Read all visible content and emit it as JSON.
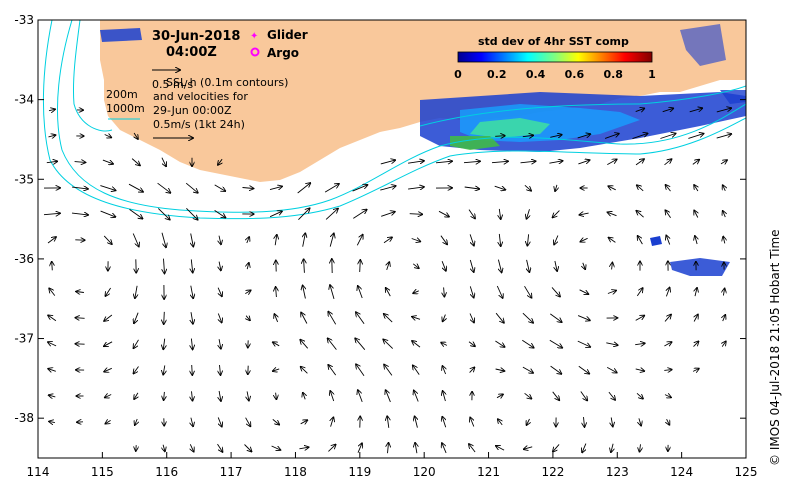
{
  "map": {
    "date": "30-Jun-2018",
    "time": "04:00Z",
    "legend_glider": "Glider",
    "legend_argo": "Argo",
    "sla_line1": "SSL h (0.1m contours)",
    "sla_line2": "and velocities for",
    "sla_line3": "29-Jun 00:00Z",
    "sla_line4": "0.5m/s (1kt 24h)",
    "scale_label": "0.5 m/s",
    "depth_200": "200m",
    "depth_1000": "1000m",
    "colorbar_title": "std dev of 4hr SST comp",
    "colorbar_ticks": [
      "0",
      "0.2",
      "0.4",
      "0.6",
      "0.8",
      "1"
    ],
    "x_ticks": [
      "114",
      "115",
      "116",
      "117",
      "118",
      "119",
      "120",
      "121",
      "122",
      "123",
      "124",
      "125"
    ],
    "y_ticks": [
      "-33",
      "-34",
      "-35",
      "-36",
      "-37",
      "-38"
    ],
    "credit": "© IMOS 04-Jul-2018 21:05 Hobart Time",
    "lon_range": [
      114,
      125
    ],
    "lat_range": [
      -38.5,
      -33
    ],
    "colors": {
      "land": "#f9c89b",
      "current": "#00d0e0",
      "glider": "#ff00ff",
      "argo": "#ff00ff"
    }
  }
}
